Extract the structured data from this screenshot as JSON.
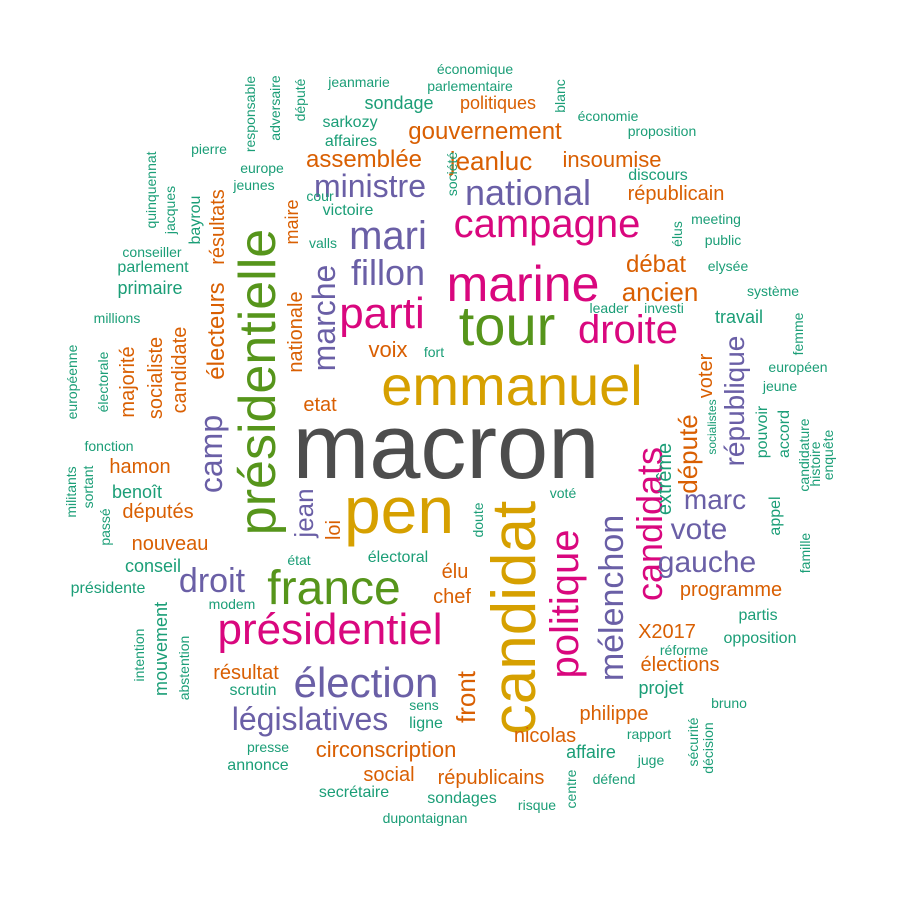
{
  "palette": {
    "gray": "#4d4d4d",
    "gold": "#d6a000",
    "magenta": "#d9077e",
    "green": "#56951b",
    "purple": "#6a5fa6",
    "orange": "#d95f02",
    "teal": "#1b9e77"
  },
  "words": [
    {
      "text": "macron",
      "color": "gray"
    },
    {
      "text": "emmanuel",
      "color": "gold"
    },
    {
      "text": "pen",
      "color": "gold"
    },
    {
      "text": "candidat",
      "color": "gold"
    },
    {
      "text": "présidentielle",
      "color": "green"
    },
    {
      "text": "tour",
      "color": "green"
    },
    {
      "text": "france",
      "color": "green"
    },
    {
      "text": "marine",
      "color": "magenta"
    },
    {
      "text": "parti",
      "color": "magenta"
    },
    {
      "text": "droite",
      "color": "magenta"
    },
    {
      "text": "campagne",
      "color": "magenta"
    },
    {
      "text": "présidentiel",
      "color": "magenta"
    },
    {
      "text": "politique",
      "color": "magenta"
    },
    {
      "text": "candidats",
      "color": "magenta"
    },
    {
      "text": "ministre",
      "color": "purple"
    },
    {
      "text": "national",
      "color": "purple"
    },
    {
      "text": "mari",
      "color": "purple"
    },
    {
      "text": "fillon",
      "color": "purple"
    },
    {
      "text": "marche",
      "color": "purple"
    },
    {
      "text": "élection",
      "color": "purple"
    },
    {
      "text": "législatives",
      "color": "purple"
    },
    {
      "text": "droit",
      "color": "purple"
    },
    {
      "text": "camp",
      "color": "purple"
    },
    {
      "text": "mélenchon",
      "color": "purple"
    },
    {
      "text": "gauche",
      "color": "purple"
    },
    {
      "text": "vote",
      "color": "purple"
    },
    {
      "text": "marc",
      "color": "purple"
    },
    {
      "text": "république",
      "color": "purple"
    },
    {
      "text": "jean",
      "color": "purple"
    },
    {
      "text": "gouvernement",
      "color": "orange"
    },
    {
      "text": "assemblée",
      "color": "orange"
    },
    {
      "text": "jeanluc",
      "color": "orange"
    },
    {
      "text": "insoumise",
      "color": "orange"
    },
    {
      "text": "républicain",
      "color": "orange"
    },
    {
      "text": "débat",
      "color": "orange"
    },
    {
      "text": "ancien",
      "color": "orange"
    },
    {
      "text": "résultats",
      "color": "orange"
    },
    {
      "text": "électeurs",
      "color": "orange"
    },
    {
      "text": "nationale",
      "color": "orange"
    },
    {
      "text": "voix",
      "color": "orange"
    },
    {
      "text": "etat",
      "color": "orange"
    },
    {
      "text": "député",
      "color": "orange"
    },
    {
      "text": "voter",
      "color": "orange"
    },
    {
      "text": "extrême",
      "color": "teal"
    },
    {
      "text": "candidate",
      "color": "orange"
    },
    {
      "text": "socialiste",
      "color": "orange"
    },
    {
      "text": "majorité",
      "color": "orange"
    },
    {
      "text": "hamon",
      "color": "orange"
    },
    {
      "text": "benoît",
      "color": "teal"
    },
    {
      "text": "députés",
      "color": "orange"
    },
    {
      "text": "nouveau",
      "color": "orange"
    },
    {
      "text": "loi",
      "color": "orange"
    },
    {
      "text": "élu",
      "color": "orange"
    },
    {
      "text": "chef",
      "color": "orange"
    },
    {
      "text": "programme",
      "color": "orange"
    },
    {
      "text": "X2017",
      "color": "orange"
    },
    {
      "text": "élections",
      "color": "orange"
    },
    {
      "text": "résultat",
      "color": "orange"
    },
    {
      "text": "front",
      "color": "orange"
    },
    {
      "text": "circonscription",
      "color": "orange"
    },
    {
      "text": "nicolas",
      "color": "orange"
    },
    {
      "text": "philippe",
      "color": "orange"
    },
    {
      "text": "social",
      "color": "orange"
    },
    {
      "text": "républicains",
      "color": "orange"
    },
    {
      "text": "politiques",
      "color": "orange"
    },
    {
      "text": "maire",
      "color": "orange"
    },
    {
      "text": "sondage",
      "color": "teal"
    },
    {
      "text": "économique",
      "color": "teal"
    },
    {
      "text": "parlementaire",
      "color": "teal"
    },
    {
      "text": "jeanmarie",
      "color": "teal"
    },
    {
      "text": "responsable",
      "color": "teal"
    },
    {
      "text": "adversaire",
      "color": "teal"
    },
    {
      "text": "député",
      "color": "teal"
    },
    {
      "text": "blanc",
      "color": "teal"
    },
    {
      "text": "économie",
      "color": "teal"
    },
    {
      "text": "proposition",
      "color": "teal"
    },
    {
      "text": "sarkozy",
      "color": "teal"
    },
    {
      "text": "affaires",
      "color": "teal"
    },
    {
      "text": "pierre",
      "color": "teal"
    },
    {
      "text": "europe",
      "color": "teal"
    },
    {
      "text": "jeunes",
      "color": "teal"
    },
    {
      "text": "cour",
      "color": "teal"
    },
    {
      "text": "victoire",
      "color": "teal"
    },
    {
      "text": "valls",
      "color": "teal"
    },
    {
      "text": "discours",
      "color": "teal"
    },
    {
      "text": "société",
      "color": "teal"
    },
    {
      "text": "quinquennat",
      "color": "teal"
    },
    {
      "text": "jacques",
      "color": "teal"
    },
    {
      "text": "bayrou",
      "color": "teal"
    },
    {
      "text": "conseiller",
      "color": "teal"
    },
    {
      "text": "parlement",
      "color": "teal"
    },
    {
      "text": "primaire",
      "color": "teal"
    },
    {
      "text": "millions",
      "color": "teal"
    },
    {
      "text": "élus",
      "color": "teal"
    },
    {
      "text": "meeting",
      "color": "teal"
    },
    {
      "text": "public",
      "color": "teal"
    },
    {
      "text": "elysée",
      "color": "teal"
    },
    {
      "text": "système",
      "color": "teal"
    },
    {
      "text": "leader",
      "color": "teal"
    },
    {
      "text": "investi",
      "color": "teal"
    },
    {
      "text": "travail",
      "color": "teal"
    },
    {
      "text": "femme",
      "color": "teal"
    },
    {
      "text": "européen",
      "color": "teal"
    },
    {
      "text": "jeune",
      "color": "teal"
    },
    {
      "text": "fort",
      "color": "teal"
    },
    {
      "text": "européenne",
      "color": "teal"
    },
    {
      "text": "électorale",
      "color": "teal"
    },
    {
      "text": "fonction",
      "color": "teal"
    },
    {
      "text": "militants",
      "color": "teal"
    },
    {
      "text": "sortant",
      "color": "teal"
    },
    {
      "text": "passé",
      "color": "teal"
    },
    {
      "text": "socialistes",
      "color": "teal"
    },
    {
      "text": "pouvoir",
      "color": "teal"
    },
    {
      "text": "accord",
      "color": "teal"
    },
    {
      "text": "candidature",
      "color": "teal"
    },
    {
      "text": "histoire",
      "color": "teal"
    },
    {
      "text": "enquête",
      "color": "teal"
    },
    {
      "text": "appel",
      "color": "teal"
    },
    {
      "text": "famille",
      "color": "teal"
    },
    {
      "text": "doute",
      "color": "teal"
    },
    {
      "text": "voté",
      "color": "teal"
    },
    {
      "text": "électoral",
      "color": "teal"
    },
    {
      "text": "état",
      "color": "teal"
    },
    {
      "text": "conseil",
      "color": "teal"
    },
    {
      "text": "modem",
      "color": "teal"
    },
    {
      "text": "présidente",
      "color": "teal"
    },
    {
      "text": "mouvement",
      "color": "teal"
    },
    {
      "text": "intention",
      "color": "teal"
    },
    {
      "text": "abstention",
      "color": "teal"
    },
    {
      "text": "scrutin",
      "color": "teal"
    },
    {
      "text": "sens",
      "color": "teal"
    },
    {
      "text": "ligne",
      "color": "teal"
    },
    {
      "text": "presse",
      "color": "teal"
    },
    {
      "text": "annonce",
      "color": "teal"
    },
    {
      "text": "secrétaire",
      "color": "teal"
    },
    {
      "text": "sondages",
      "color": "teal"
    },
    {
      "text": "dupontaignan",
      "color": "teal"
    },
    {
      "text": "risque",
      "color": "teal"
    },
    {
      "text": "centre",
      "color": "teal"
    },
    {
      "text": "défend",
      "color": "teal"
    },
    {
      "text": "juge",
      "color": "teal"
    },
    {
      "text": "rapport",
      "color": "teal"
    },
    {
      "text": "sécurité",
      "color": "teal"
    },
    {
      "text": "décision",
      "color": "teal"
    },
    {
      "text": "bruno",
      "color": "teal"
    },
    {
      "text": "affaire",
      "color": "teal"
    },
    {
      "text": "réforme",
      "color": "teal"
    },
    {
      "text": "opposition",
      "color": "teal"
    },
    {
      "text": "partis",
      "color": "teal"
    },
    {
      "text": "projet",
      "color": "teal"
    }
  ]
}
